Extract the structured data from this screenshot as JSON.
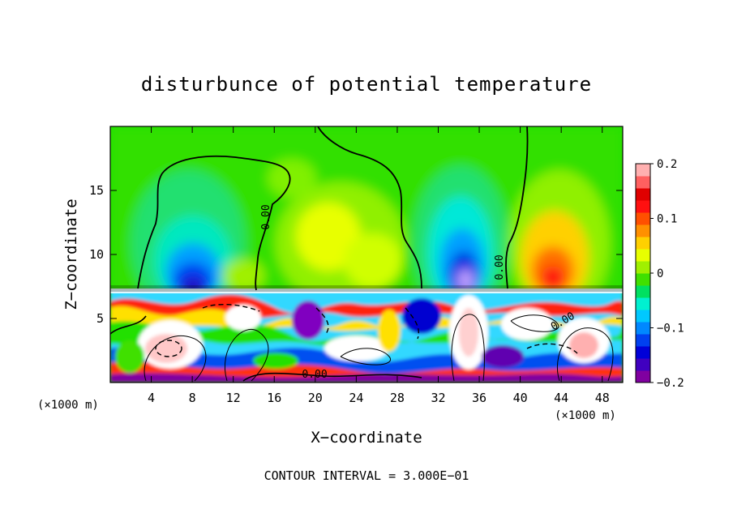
{
  "chart_data": {
    "type": "heatmap",
    "title": "disturbunce of potential temperature",
    "xlabel": "X−coordinate",
    "ylabel": "Z−coordinate",
    "x_unit": "(×1000 m)",
    "y_unit": "(×1000 m)",
    "xlim": [
      0,
      50
    ],
    "ylim": [
      0,
      20
    ],
    "x_ticks": [
      4,
      8,
      12,
      16,
      20,
      24,
      28,
      32,
      36,
      40,
      44,
      48
    ],
    "y_ticks": [
      5,
      10,
      15
    ],
    "colorbar": {
      "min": -0.2,
      "max": 0.2,
      "ticks": [
        0.2,
        0.1,
        0,
        -0.1,
        -0.2
      ],
      "tick_labels": [
        "0.2",
        "0.1",
        "0",
        "−0.1",
        "−0.2"
      ],
      "colors": [
        "#8000a0",
        "#4000c0",
        "#0000d8",
        "#0040f0",
        "#0088ff",
        "#00c8ff",
        "#00f0d0",
        "#00e060",
        "#40e000",
        "#a0f000",
        "#e8ff00",
        "#ffd000",
        "#ff9000",
        "#ff5000",
        "#ff1010",
        "#e00000",
        "#ff6060",
        "#ffb0b0"
      ]
    },
    "contour_labels": [
      "0.00",
      "0.00",
      "0.00",
      "0.00"
    ],
    "footer": "CONTOUR INTERVAL = 3.000E−01",
    "grid": false
  }
}
